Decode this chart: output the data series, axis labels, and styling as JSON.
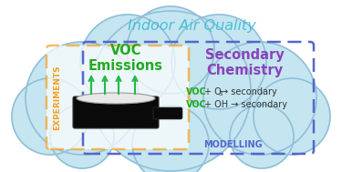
{
  "title": "Indoor Air Quality",
  "title_color": "#4BBFD8",
  "title_fontsize": 11.5,
  "experiments_label": "EXPERIMENTS",
  "experiments_color": "#F5A020",
  "modelling_label": "MODELLING",
  "modelling_color": "#5566CC",
  "voc_emissions_label": "VOC\nEmissions",
  "voc_emissions_color": "#22AA22",
  "secondary_chemistry_label": "Secondary\nChemistry",
  "secondary_chemistry_color": "#8844BB",
  "reaction_voc_color": "#22AA22",
  "reaction_rest_color": "#333333",
  "cloud_fill": "#C5E5F0",
  "cloud_edge": "#90C0D8",
  "orange_box_color": "#F5A020",
  "blue_box_color": "#5566CC",
  "arrow_color": "#22BB44",
  "figsize": [
    3.75,
    1.89
  ],
  "dpi": 100,
  "cloud_circles": [
    [
      187,
      100,
      88
    ],
    [
      90,
      108,
      62
    ],
    [
      285,
      108,
      62
    ],
    [
      140,
      68,
      52
    ],
    [
      240,
      68,
      52
    ],
    [
      187,
      55,
      48
    ],
    [
      55,
      128,
      42
    ],
    [
      320,
      128,
      42
    ],
    [
      90,
      150,
      35
    ],
    [
      287,
      150,
      35
    ],
    [
      187,
      158,
      42
    ]
  ]
}
